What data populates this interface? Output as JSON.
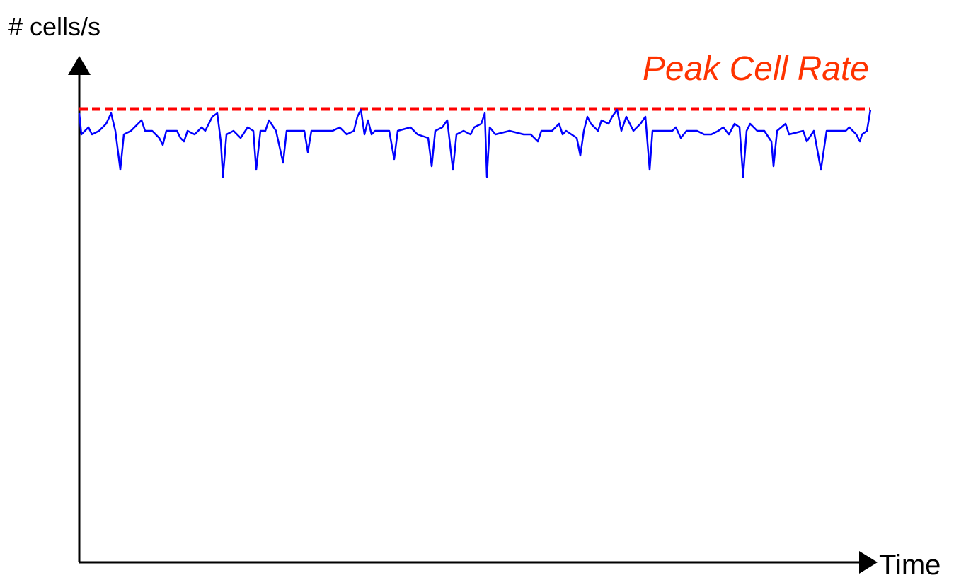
{
  "chart_data": {
    "type": "line",
    "y_label": "# cells/s",
    "x_label": "Time",
    "xlim": [
      0,
      1118
    ],
    "ylim": [
      0,
      715
    ],
    "x": [
      0,
      3,
      8,
      13,
      18,
      28,
      38,
      45,
      51,
      58,
      63,
      73,
      83,
      88,
      93,
      103,
      113,
      118,
      123,
      138,
      143,
      148,
      153,
      163,
      173,
      178,
      188,
      195,
      200,
      203,
      208,
      218,
      228,
      238,
      246,
      250,
      256,
      263,
      268,
      278,
      288,
      293,
      308,
      318,
      323,
      328,
      343,
      358,
      368,
      378,
      388,
      393,
      398,
      403,
      408,
      413,
      418,
      438,
      445,
      450,
      468,
      478,
      493,
      498,
      503,
      513,
      520,
      528,
      533,
      543,
      553,
      558,
      568,
      573,
      576,
      580,
      588,
      608,
      628,
      638,
      648,
      653,
      668,
      678,
      683,
      688,
      703,
      708,
      713,
      718,
      723,
      733,
      738,
      748,
      753,
      760,
      766,
      773,
      783,
      793,
      800,
      806,
      810,
      828,
      838,
      843,
      850,
      858,
      873,
      883,
      893,
      903,
      910,
      918,
      926,
      933,
      938,
      943,
      948,
      958,
      968,
      978,
      981,
      986,
      998,
      1003,
      1023,
      1028,
      1038,
      1048,
      1056,
      1073,
      1083,
      1088,
      1098,
      1103,
      1106,
      1113,
      1118
    ],
    "series": [
      {
        "color": "#0000ff",
        "values": [
          635,
          605,
          610,
          615,
          605,
          610,
          620,
          635,
          610,
          555,
          605,
          610,
          620,
          625,
          610,
          610,
          600,
          590,
          610,
          610,
          600,
          595,
          610,
          605,
          615,
          610,
          630,
          635,
          595,
          545,
          605,
          610,
          600,
          615,
          610,
          555,
          610,
          610,
          625,
          610,
          565,
          610,
          610,
          610,
          580,
          610,
          610,
          610,
          615,
          605,
          610,
          630,
          640,
          605,
          625,
          605,
          610,
          610,
          570,
          610,
          615,
          605,
          600,
          560,
          610,
          615,
          625,
          555,
          605,
          610,
          605,
          615,
          620,
          635,
          545,
          615,
          605,
          610,
          605,
          605,
          595,
          610,
          610,
          620,
          605,
          610,
          600,
          575,
          610,
          630,
          620,
          610,
          625,
          620,
          630,
          640,
          610,
          630,
          610,
          620,
          630,
          555,
          610,
          610,
          610,
          615,
          600,
          610,
          610,
          605,
          605,
          610,
          615,
          605,
          620,
          615,
          545,
          610,
          620,
          610,
          610,
          595,
          560,
          610,
          620,
          605,
          610,
          595,
          610,
          555,
          610,
          610,
          610,
          615,
          605,
          595,
          605,
          610,
          640
        ]
      }
    ],
    "peak_line": {
      "label": "Peak Cell Rate",
      "value": 641,
      "color": "#ff0000"
    }
  }
}
